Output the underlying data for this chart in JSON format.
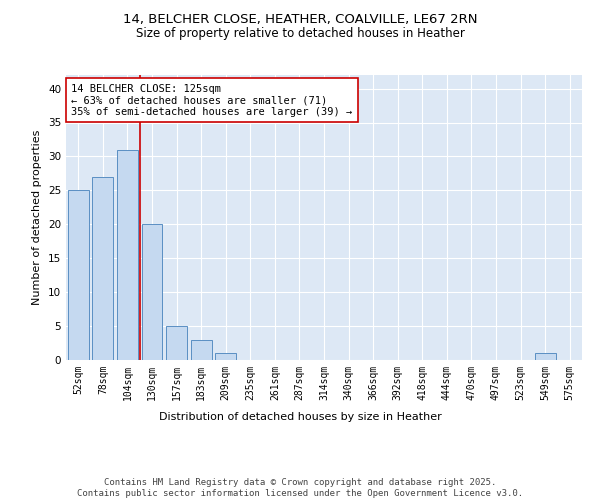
{
  "title_line1": "14, BELCHER CLOSE, HEATHER, COALVILLE, LE67 2RN",
  "title_line2": "Size of property relative to detached houses in Heather",
  "xlabel": "Distribution of detached houses by size in Heather",
  "ylabel": "Number of detached properties",
  "bin_labels": [
    "52sqm",
    "78sqm",
    "104sqm",
    "130sqm",
    "157sqm",
    "183sqm",
    "209sqm",
    "235sqm",
    "261sqm",
    "287sqm",
    "314sqm",
    "340sqm",
    "366sqm",
    "392sqm",
    "418sqm",
    "444sqm",
    "470sqm",
    "497sqm",
    "523sqm",
    "549sqm",
    "575sqm"
  ],
  "bar_values": [
    25,
    27,
    31,
    20,
    5,
    3,
    1,
    0,
    0,
    0,
    0,
    0,
    0,
    0,
    0,
    0,
    0,
    0,
    0,
    1,
    0
  ],
  "bar_color": "#c5d9f0",
  "bar_edge_color": "#5a8fc3",
  "vline_color": "#cc0000",
  "annotation_text": "14 BELCHER CLOSE: 125sqm\n← 63% of detached houses are smaller (71)\n35% of semi-detached houses are larger (39) →",
  "annotation_box_color": "#ffffff",
  "annotation_box_edge_color": "#cc0000",
  "ylim": [
    0,
    42
  ],
  "yticks": [
    0,
    5,
    10,
    15,
    20,
    25,
    30,
    35,
    40
  ],
  "background_color": "#ffffff",
  "plot_bg_color": "#dde8f5",
  "grid_color": "#ffffff",
  "footer_text": "Contains HM Land Registry data © Crown copyright and database right 2025.\nContains public sector information licensed under the Open Government Licence v3.0.",
  "title_fontsize": 9.5,
  "subtitle_fontsize": 8.5,
  "xlabel_fontsize": 8,
  "ylabel_fontsize": 8,
  "tick_fontsize": 7,
  "annotation_fontsize": 7.5,
  "footer_fontsize": 6.5
}
